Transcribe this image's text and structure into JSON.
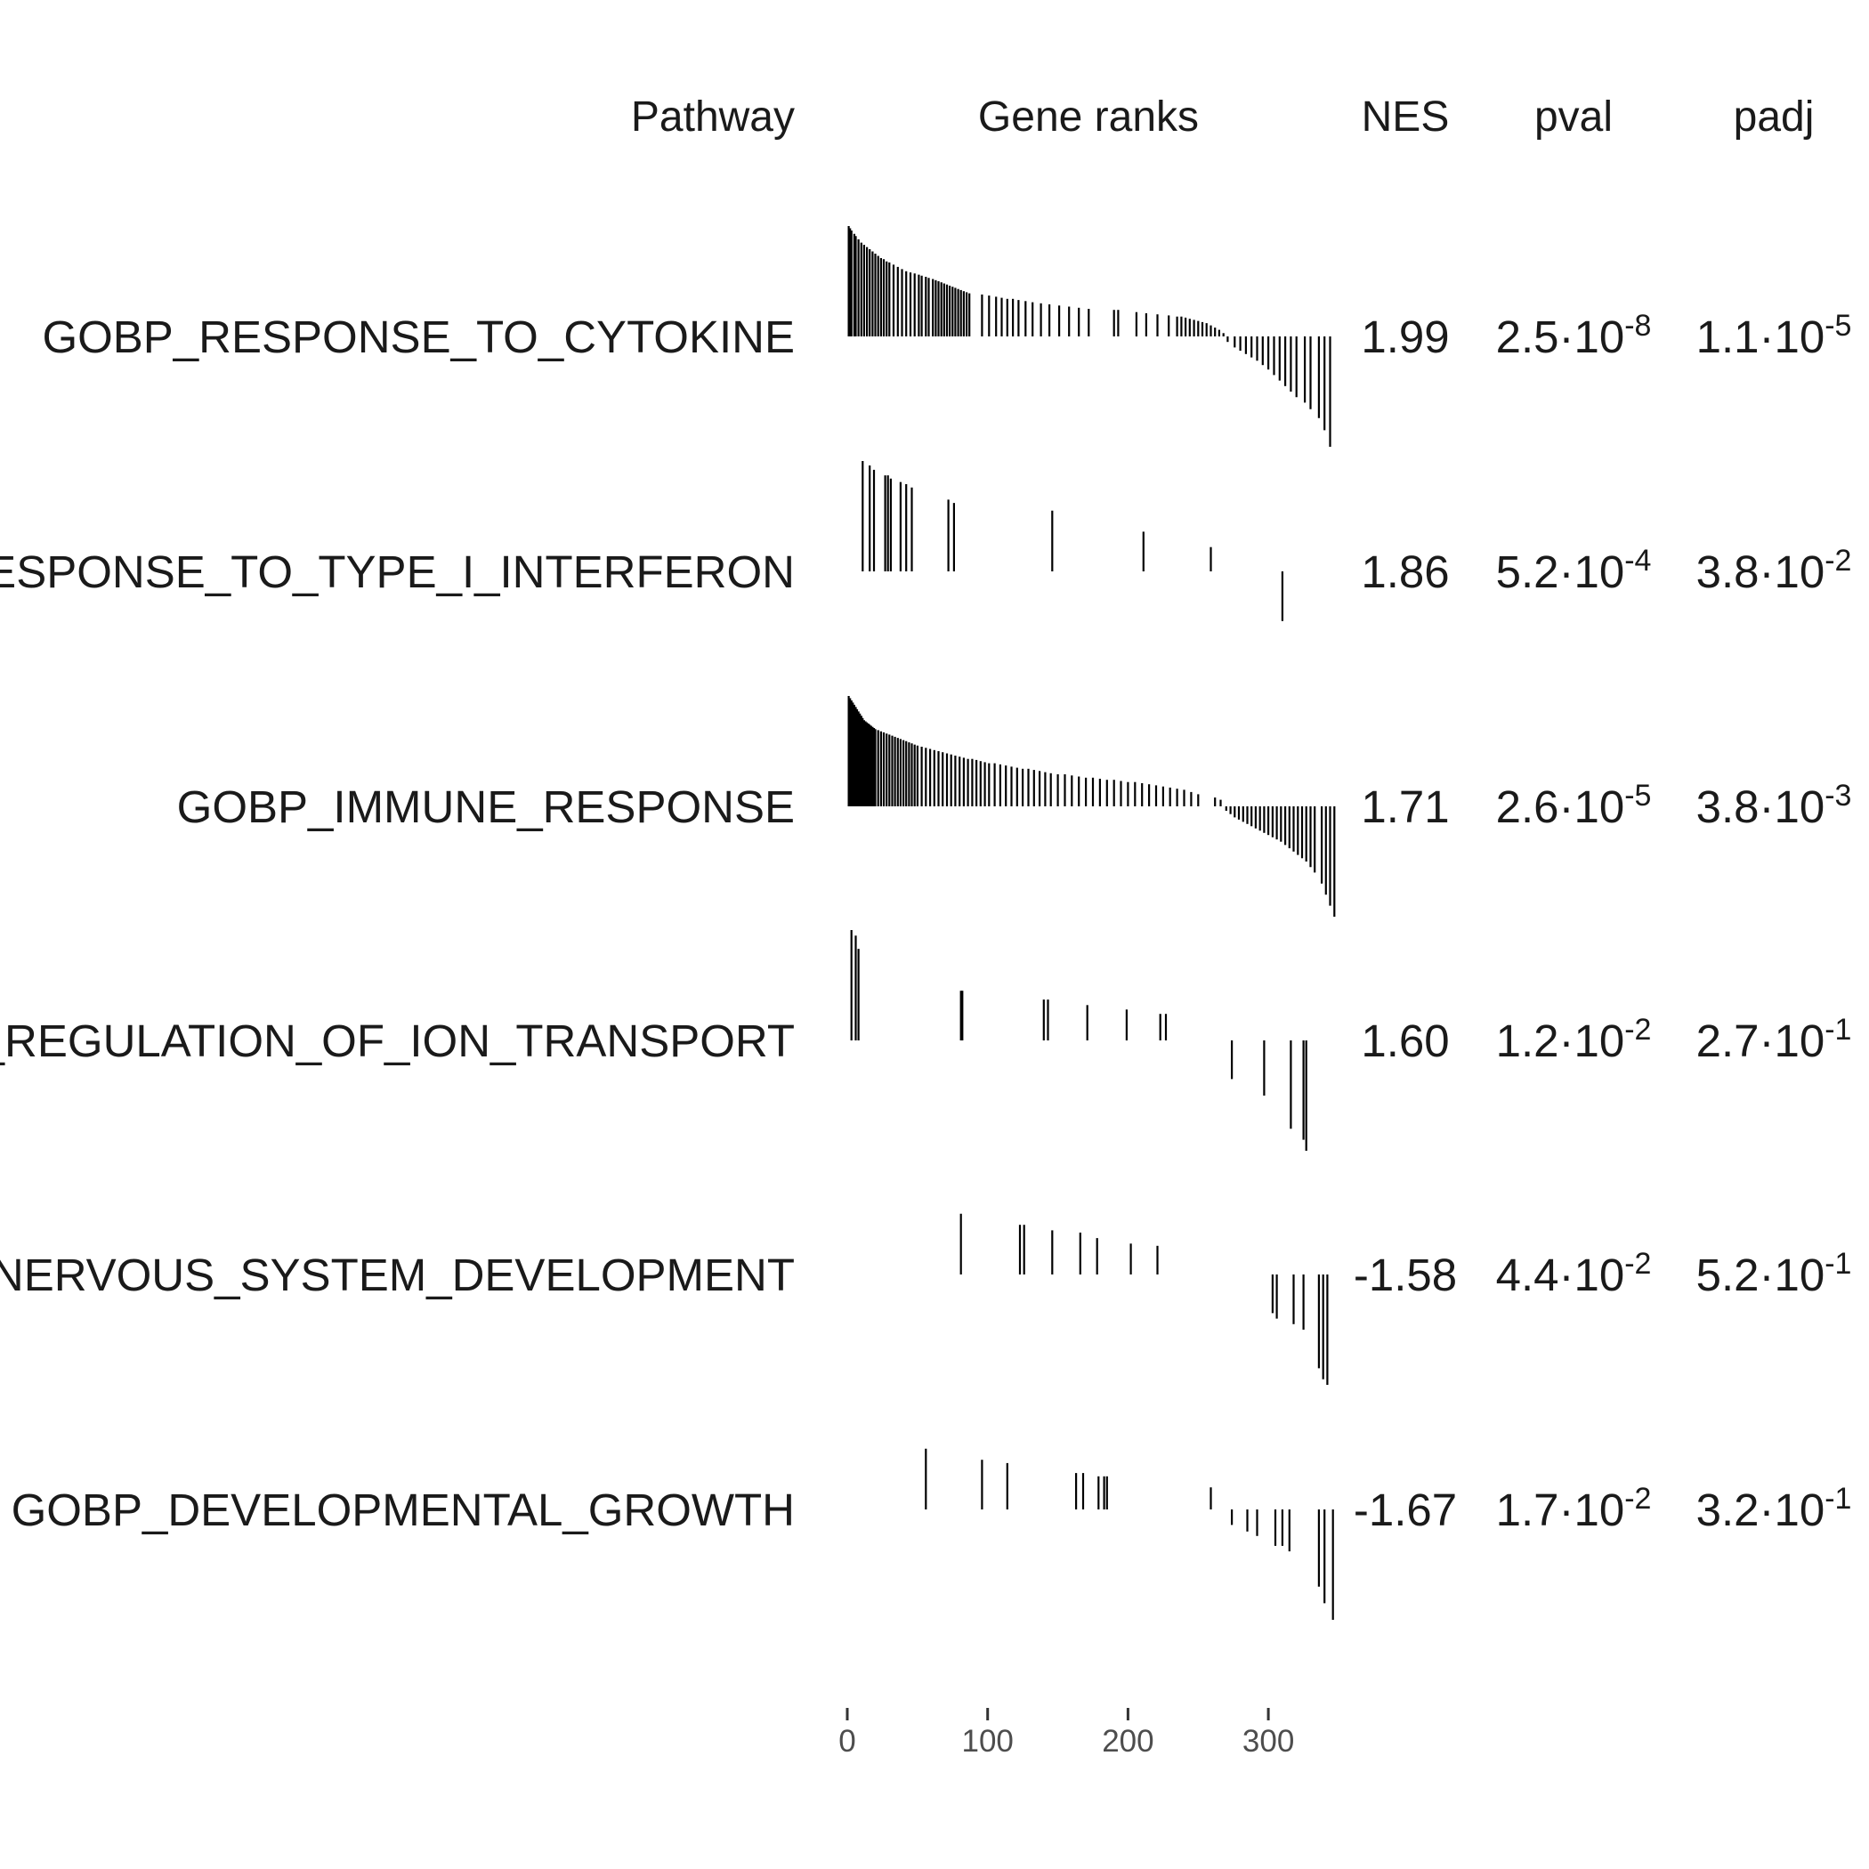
{
  "chart_data": {
    "type": "table",
    "headers": {
      "pathway": "Pathway",
      "gene_ranks": "Gene ranks",
      "nes": "NES",
      "pval": "pval",
      "padj": "padj"
    },
    "x_axis": {
      "range": [
        0,
        350
      ],
      "ticks": [
        0,
        100,
        200,
        300
      ],
      "tick_labels": [
        "0",
        "100",
        "200",
        "300"
      ]
    },
    "rows": [
      {
        "pathway": "GOBP_RESPONSE_TO_CYTOKINE",
        "nes": "1.99",
        "pval": {
          "mantissa": "2.5",
          "exponent": "-8"
        },
        "padj": {
          "mantissa": "1.1",
          "exponent": "-5"
        },
        "hits": [
          [
            1,
            1.0
          ],
          [
            2,
            0.98
          ],
          [
            3,
            0.96
          ],
          [
            5,
            0.93
          ],
          [
            6,
            0.91
          ],
          [
            8,
            0.88
          ],
          [
            10,
            0.85
          ],
          [
            12,
            0.83
          ],
          [
            14,
            0.81
          ],
          [
            16,
            0.79
          ],
          [
            18,
            0.77
          ],
          [
            20,
            0.75
          ],
          [
            22,
            0.73
          ],
          [
            24,
            0.71
          ],
          [
            26,
            0.7
          ],
          [
            28,
            0.68
          ],
          [
            30,
            0.67
          ],
          [
            33,
            0.65
          ],
          [
            36,
            0.63
          ],
          [
            39,
            0.61
          ],
          [
            42,
            0.59
          ],
          [
            45,
            0.58
          ],
          [
            48,
            0.57
          ],
          [
            51,
            0.56
          ],
          [
            53,
            0.55
          ],
          [
            56,
            0.54
          ],
          [
            58,
            0.53
          ],
          [
            61,
            0.52
          ],
          [
            63,
            0.51
          ],
          [
            65,
            0.5
          ],
          [
            67,
            0.49
          ],
          [
            69,
            0.48
          ],
          [
            71,
            0.47
          ],
          [
            73,
            0.46
          ],
          [
            75,
            0.45
          ],
          [
            77,
            0.44
          ],
          [
            79,
            0.43
          ],
          [
            81,
            0.42
          ],
          [
            83,
            0.41
          ],
          [
            85,
            0.4
          ],
          [
            87,
            0.39
          ],
          [
            96,
            0.38
          ],
          [
            101,
            0.37
          ],
          [
            106,
            0.36
          ],
          [
            110,
            0.35
          ],
          [
            114,
            0.34
          ],
          [
            118,
            0.34
          ],
          [
            122,
            0.33
          ],
          [
            127,
            0.32
          ],
          [
            132,
            0.31
          ],
          [
            138,
            0.3
          ],
          [
            144,
            0.29
          ],
          [
            151,
            0.28
          ],
          [
            158,
            0.27
          ],
          [
            165,
            0.26
          ],
          [
            172,
            0.25
          ],
          [
            190,
            0.24
          ],
          [
            193,
            0.24
          ],
          [
            206,
            0.22
          ],
          [
            213,
            0.21
          ],
          [
            221,
            0.2
          ],
          [
            229,
            0.19
          ],
          [
            235,
            0.18
          ],
          [
            238,
            0.18
          ],
          [
            241,
            0.17
          ],
          [
            244,
            0.16
          ],
          [
            247,
            0.15
          ],
          [
            250,
            0.14
          ],
          [
            253,
            0.13
          ],
          [
            256,
            0.12
          ],
          [
            259,
            0.1
          ],
          [
            262,
            0.08
          ],
          [
            265,
            0.06
          ],
          [
            268,
            0.03
          ],
          [
            271,
            -0.05
          ],
          [
            276,
            -0.1
          ],
          [
            280,
            -0.13
          ],
          [
            284,
            -0.16
          ],
          [
            288,
            -0.19
          ],
          [
            292,
            -0.22
          ],
          [
            296,
            -0.26
          ],
          [
            300,
            -0.3
          ],
          [
            304,
            -0.35
          ],
          [
            308,
            -0.4
          ],
          [
            312,
            -0.45
          ],
          [
            316,
            -0.5
          ],
          [
            320,
            -0.55
          ],
          [
            326,
            -0.6
          ],
          [
            330,
            -0.66
          ],
          [
            336,
            -0.74
          ],
          [
            340,
            -0.85
          ],
          [
            344,
            -1.0
          ]
        ]
      },
      {
        "pathway": "GOBP_RESPONSE_TO_TYPE_I_INTERFERON",
        "nes": "1.86",
        "pval": {
          "mantissa": "5.2",
          "exponent": "-4"
        },
        "padj": {
          "mantissa": "3.8",
          "exponent": "-2"
        },
        "hits": [
          [
            11,
            1.0
          ],
          [
            16,
            0.96
          ],
          [
            19,
            0.92
          ],
          [
            27,
            0.87
          ],
          [
            29,
            0.87
          ],
          [
            31,
            0.84
          ],
          [
            38,
            0.81
          ],
          [
            42,
            0.79
          ],
          [
            46,
            0.76
          ],
          [
            72,
            0.65
          ],
          [
            76,
            0.62
          ],
          [
            146,
            0.55
          ],
          [
            211,
            0.36
          ],
          [
            259,
            0.22
          ],
          [
            310,
            -0.45
          ]
        ]
      },
      {
        "pathway": "GOBP_IMMUNE_RESPONSE",
        "nes": "1.71",
        "pval": {
          "mantissa": "2.6",
          "exponent": "-5"
        },
        "padj": {
          "mantissa": "3.8",
          "exponent": "-3"
        },
        "hits": [
          [
            1,
            1.0
          ],
          [
            2,
            0.98
          ],
          [
            3,
            0.96
          ],
          [
            4,
            0.94
          ],
          [
            5,
            0.92
          ],
          [
            6,
            0.9
          ],
          [
            7,
            0.88
          ],
          [
            8,
            0.86
          ],
          [
            9,
            0.84
          ],
          [
            10,
            0.82
          ],
          [
            11,
            0.8
          ],
          [
            12,
            0.78
          ],
          [
            13,
            0.77
          ],
          [
            14,
            0.76
          ],
          [
            15,
            0.75
          ],
          [
            16,
            0.74
          ],
          [
            17,
            0.73
          ],
          [
            18,
            0.72
          ],
          [
            19,
            0.71
          ],
          [
            20,
            0.7
          ],
          [
            22,
            0.69
          ],
          [
            24,
            0.68
          ],
          [
            26,
            0.67
          ],
          [
            28,
            0.66
          ],
          [
            30,
            0.65
          ],
          [
            32,
            0.64
          ],
          [
            34,
            0.63
          ],
          [
            36,
            0.62
          ],
          [
            38,
            0.61
          ],
          [
            40,
            0.6
          ],
          [
            42,
            0.59
          ],
          [
            44,
            0.58
          ],
          [
            46,
            0.57
          ],
          [
            48,
            0.56
          ],
          [
            50,
            0.55
          ],
          [
            53,
            0.54
          ],
          [
            56,
            0.53
          ],
          [
            59,
            0.52
          ],
          [
            62,
            0.51
          ],
          [
            65,
            0.5
          ],
          [
            68,
            0.49
          ],
          [
            71,
            0.48
          ],
          [
            74,
            0.47
          ],
          [
            77,
            0.46
          ],
          [
            80,
            0.45
          ],
          [
            83,
            0.44
          ],
          [
            86,
            0.43
          ],
          [
            89,
            0.43
          ],
          [
            92,
            0.42
          ],
          [
            95,
            0.41
          ],
          [
            98,
            0.4
          ],
          [
            101,
            0.39
          ],
          [
            105,
            0.39
          ],
          [
            109,
            0.38
          ],
          [
            113,
            0.37
          ],
          [
            117,
            0.36
          ],
          [
            121,
            0.35
          ],
          [
            125,
            0.34
          ],
          [
            129,
            0.34
          ],
          [
            133,
            0.33
          ],
          [
            137,
            0.32
          ],
          [
            141,
            0.31
          ],
          [
            145,
            0.3
          ],
          [
            150,
            0.29
          ],
          [
            155,
            0.29
          ],
          [
            160,
            0.28
          ],
          [
            165,
            0.27
          ],
          [
            170,
            0.26
          ],
          [
            175,
            0.26
          ],
          [
            180,
            0.25
          ],
          [
            185,
            0.24
          ],
          [
            190,
            0.24
          ],
          [
            195,
            0.23
          ],
          [
            200,
            0.22
          ],
          [
            205,
            0.22
          ],
          [
            210,
            0.21
          ],
          [
            215,
            0.2
          ],
          [
            220,
            0.19
          ],
          [
            225,
            0.18
          ],
          [
            230,
            0.17
          ],
          [
            235,
            0.16
          ],
          [
            240,
            0.15
          ],
          [
            245,
            0.13
          ],
          [
            250,
            0.11
          ],
          [
            262,
            0.08
          ],
          [
            266,
            0.06
          ],
          [
            270,
            -0.04
          ],
          [
            273,
            -0.07
          ],
          [
            276,
            -0.1
          ],
          [
            279,
            -0.12
          ],
          [
            282,
            -0.14
          ],
          [
            285,
            -0.16
          ],
          [
            288,
            -0.18
          ],
          [
            291,
            -0.2
          ],
          [
            294,
            -0.22
          ],
          [
            297,
            -0.24
          ],
          [
            300,
            -0.26
          ],
          [
            303,
            -0.28
          ],
          [
            306,
            -0.3
          ],
          [
            309,
            -0.32
          ],
          [
            312,
            -0.35
          ],
          [
            315,
            -0.38
          ],
          [
            318,
            -0.41
          ],
          [
            321,
            -0.44
          ],
          [
            324,
            -0.47
          ],
          [
            327,
            -0.5
          ],
          [
            330,
            -0.55
          ],
          [
            333,
            -0.6
          ],
          [
            338,
            -0.7
          ],
          [
            341,
            -0.8
          ],
          [
            344,
            -0.9
          ],
          [
            347,
            -1.0
          ]
        ]
      },
      {
        "pathway": "GOBP_REGULATION_OF_ION_TRANSPORT",
        "nes": "1.60",
        "pval": {
          "mantissa": "1.2",
          "exponent": "-2"
        },
        "padj": {
          "mantissa": "2.7",
          "exponent": "-1"
        },
        "hits": [
          [
            3,
            1.0
          ],
          [
            6,
            0.95
          ],
          [
            8,
            0.83
          ],
          [
            81,
            0.45
          ],
          [
            82,
            0.45
          ],
          [
            140,
            0.37
          ],
          [
            143,
            0.37
          ],
          [
            171,
            0.32
          ],
          [
            199,
            0.28
          ],
          [
            223,
            0.24
          ],
          [
            227,
            0.24
          ],
          [
            274,
            -0.35
          ],
          [
            297,
            -0.5
          ],
          [
            316,
            -0.8
          ],
          [
            325,
            -0.9
          ],
          [
            327,
            -1.0
          ]
        ]
      },
      {
        "pathway": "GOBP_NERVOUS_SYSTEM_DEVELOPMENT",
        "nes": "-1.58",
        "pval": {
          "mantissa": "4.4",
          "exponent": "-2"
        },
        "padj": {
          "mantissa": "5.2",
          "exponent": "-1"
        },
        "hits": [
          [
            81,
            0.55
          ],
          [
            123,
            0.45
          ],
          [
            126,
            0.45
          ],
          [
            146,
            0.4
          ],
          [
            166,
            0.38
          ],
          [
            178,
            0.33
          ],
          [
            202,
            0.28
          ],
          [
            221,
            0.26
          ],
          [
            303,
            -0.35
          ],
          [
            306,
            -0.4
          ],
          [
            318,
            -0.45
          ],
          [
            325,
            -0.5
          ],
          [
            336,
            -0.85
          ],
          [
            339,
            -0.95
          ],
          [
            342,
            -1.0
          ]
        ]
      },
      {
        "pathway": "GOBP_DEVELOPMENTAL_GROWTH",
        "nes": "-1.67",
        "pval": {
          "mantissa": "1.7",
          "exponent": "-2"
        },
        "padj": {
          "mantissa": "3.2",
          "exponent": "-1"
        },
        "hits": [
          [
            56,
            0.55
          ],
          [
            96,
            0.45
          ],
          [
            114,
            0.42
          ],
          [
            163,
            0.33
          ],
          [
            168,
            0.33
          ],
          [
            179,
            0.3
          ],
          [
            183,
            0.3
          ],
          [
            185,
            0.3
          ],
          [
            259,
            0.2
          ],
          [
            274,
            -0.14
          ],
          [
            285,
            -0.2
          ],
          [
            292,
            -0.24
          ],
          [
            305,
            -0.33
          ],
          [
            310,
            -0.33
          ],
          [
            315,
            -0.38
          ],
          [
            336,
            -0.7
          ],
          [
            340,
            -0.85
          ],
          [
            346,
            -1.0
          ]
        ]
      }
    ]
  }
}
